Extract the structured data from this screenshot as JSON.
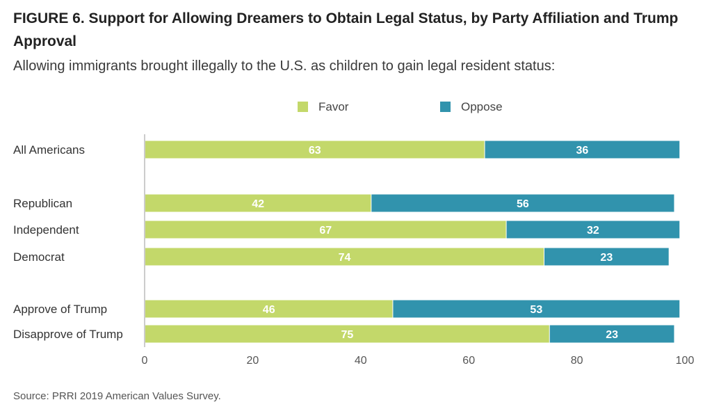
{
  "figure": {
    "title": "FIGURE 6. Support for Allowing Dreamers to Obtain Legal Status, by Party Affiliation and Trump Approval",
    "subtitle": "Allowing immigrants brought illegally to the U.S. as children to gain legal resident status:",
    "source": "Source: PRRI 2019 American Values Survey."
  },
  "chart_data": {
    "type": "bar",
    "orientation": "horizontal",
    "stacked": true,
    "categories": [
      "All Americans",
      "Republican",
      "Independent",
      "Democrat",
      "Approve of Trump",
      "Disapprove of Trump"
    ],
    "groups": [
      [
        "All Americans"
      ],
      [
        "Republican",
        "Independent",
        "Democrat"
      ],
      [
        "Approve of Trump",
        "Disapprove of Trump"
      ]
    ],
    "series": [
      {
        "name": "Favor",
        "color": "#c3d86a",
        "values": [
          63,
          42,
          67,
          74,
          46,
          75
        ]
      },
      {
        "name": "Oppose",
        "color": "#3193ad",
        "values": [
          36,
          56,
          32,
          23,
          53,
          23
        ]
      }
    ],
    "xlim": [
      0,
      100
    ],
    "xticks": [
      0,
      20,
      40,
      60,
      80,
      100
    ],
    "legend_position": "top",
    "grid": false
  }
}
